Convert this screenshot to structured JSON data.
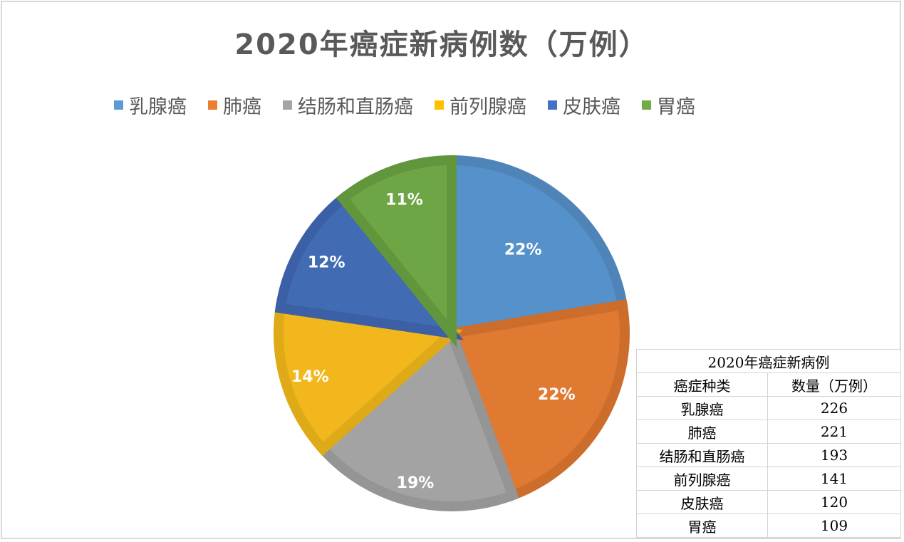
{
  "title": "2020年癌症新病例数（万例）",
  "legend": [
    {
      "label": "乳腺癌",
      "color": "#5b9bd5"
    },
    {
      "label": "肺癌",
      "color": "#ed7d31"
    },
    {
      "label": "结肠和直肠癌",
      "color": "#a5a5a5"
    },
    {
      "label": "前列腺癌",
      "color": "#ffc000"
    },
    {
      "label": "皮肤癌",
      "color": "#4472c4"
    },
    {
      "label": "胃癌",
      "color": "#70ad47"
    }
  ],
  "slices": [
    {
      "label": "乳腺癌",
      "value": 226,
      "pct_label": "22%",
      "fill": "#5591ca",
      "stroke": "#4f84b8"
    },
    {
      "label": "肺癌",
      "value": 221,
      "pct_label": "22%",
      "fill": "#e07a33",
      "stroke": "#cd6d2c"
    },
    {
      "label": "结肠和直肠癌",
      "value": 193,
      "pct_label": "19%",
      "fill": "#a3a3a3",
      "stroke": "#959595"
    },
    {
      "label": "前列腺癌",
      "value": 141,
      "pct_label": "14%",
      "fill": "#f2b71c",
      "stroke": "#dfaa18"
    },
    {
      "label": "皮肤癌",
      "value": 120,
      "pct_label": "12%",
      "fill": "#416cb4",
      "stroke": "#3b60a5"
    },
    {
      "label": "胃癌",
      "value": 109,
      "pct_label": "11%",
      "fill": "#6ea646",
      "stroke": "#62963d"
    }
  ],
  "table": {
    "caption": "2020年癌症新病例",
    "headers": [
      "癌症种类",
      "数量（万例）"
    ],
    "rows": [
      [
        "乳腺癌",
        "226"
      ],
      [
        "肺癌",
        "221"
      ],
      [
        "结肠和直肠癌",
        "193"
      ],
      [
        "前列腺癌",
        "141"
      ],
      [
        "皮肤癌",
        "120"
      ],
      [
        "胃癌",
        "109"
      ]
    ]
  },
  "chart_data": {
    "type": "pie",
    "title": "2020年癌症新病例数（万例）",
    "categories": [
      "乳腺癌",
      "肺癌",
      "结肠和直肠癌",
      "前列腺癌",
      "皮肤癌",
      "胃癌"
    ],
    "values": [
      226,
      221,
      193,
      141,
      120,
      109
    ],
    "percent_labels": [
      "22%",
      "22%",
      "19%",
      "14%",
      "12%",
      "11%"
    ],
    "colors": [
      "#5b9bd5",
      "#ed7d31",
      "#a5a5a5",
      "#ffc000",
      "#4472c4",
      "#70ad47"
    ],
    "legend_position": "top",
    "start_angle": "12 o'clock, clockwise",
    "data_table": {
      "caption": "2020年癌症新病例",
      "headers": [
        "癌症种类",
        "数量（万例）"
      ]
    }
  }
}
